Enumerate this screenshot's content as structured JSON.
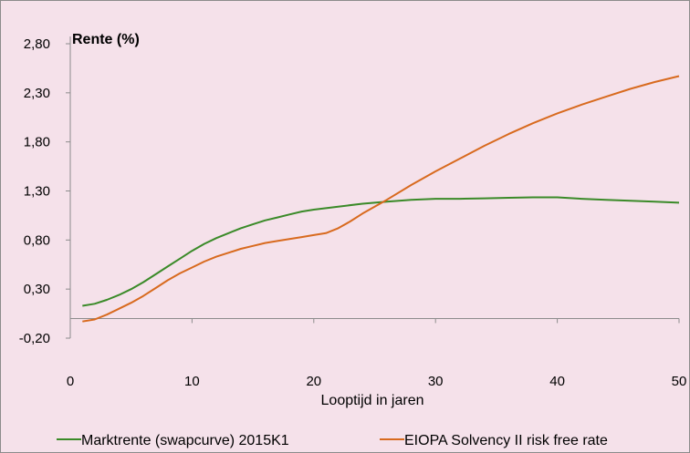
{
  "chart_data": {
    "type": "line",
    "title": "Rente (%)",
    "xlabel": "Looptijd in jaren",
    "ylabel": "",
    "xlim": [
      0,
      50
    ],
    "ylim": [
      -0.2,
      2.8
    ],
    "x_ticks": [
      0,
      10,
      20,
      30,
      40,
      50
    ],
    "x_tick_labels": [
      "0",
      "10",
      "20",
      "30",
      "40",
      "50"
    ],
    "y_ticks": [
      -0.2,
      0.3,
      0.8,
      1.3,
      1.8,
      2.3,
      2.8
    ],
    "y_tick_labels": [
      "-0,20",
      "0,30",
      "0,80",
      "1,30",
      "1,80",
      "2,30",
      "2,80"
    ],
    "grid": false,
    "legend_position": "bottom",
    "background_color": "#f5e1ea",
    "series": [
      {
        "name": "Marktrente (swapcurve) 2015K1",
        "color": "#3a8a28",
        "x": [
          1,
          2,
          3,
          4,
          5,
          6,
          7,
          8,
          9,
          10,
          11,
          12,
          13,
          14,
          15,
          16,
          17,
          18,
          19,
          20,
          22,
          24,
          26,
          28,
          30,
          32,
          34,
          36,
          38,
          40,
          42,
          44,
          46,
          48,
          50
        ],
        "y": [
          0.13,
          0.15,
          0.19,
          0.24,
          0.3,
          0.37,
          0.45,
          0.53,
          0.61,
          0.69,
          0.76,
          0.82,
          0.87,
          0.92,
          0.96,
          1.0,
          1.03,
          1.06,
          1.09,
          1.11,
          1.14,
          1.17,
          1.19,
          1.21,
          1.22,
          1.22,
          1.225,
          1.23,
          1.235,
          1.235,
          1.22,
          1.21,
          1.2,
          1.19,
          1.18
        ]
      },
      {
        "name": "EIOPA Solvency II risk free rate",
        "color": "#d86a1e",
        "x": [
          1,
          2,
          3,
          4,
          5,
          6,
          7,
          8,
          9,
          10,
          11,
          12,
          13,
          14,
          15,
          16,
          17,
          18,
          19,
          20,
          21,
          22,
          23,
          24,
          25,
          26,
          28,
          30,
          32,
          34,
          36,
          38,
          40,
          42,
          44,
          46,
          48,
          50
        ],
        "y": [
          -0.03,
          -0.01,
          0.04,
          0.1,
          0.16,
          0.23,
          0.31,
          0.39,
          0.46,
          0.52,
          0.58,
          0.63,
          0.67,
          0.71,
          0.74,
          0.77,
          0.79,
          0.81,
          0.83,
          0.85,
          0.87,
          0.92,
          0.99,
          1.07,
          1.14,
          1.21,
          1.36,
          1.5,
          1.63,
          1.76,
          1.88,
          1.99,
          2.09,
          2.18,
          2.26,
          2.34,
          2.41,
          2.47
        ]
      }
    ]
  }
}
